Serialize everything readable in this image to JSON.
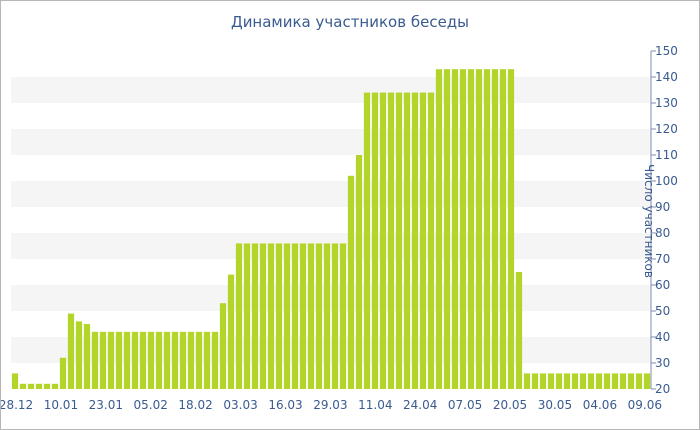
{
  "chart_data": {
    "type": "bar",
    "title": "Динамика участников беседы",
    "ylabel": "Число участников",
    "xlabel": "",
    "ylim": [
      20,
      150
    ],
    "y_ticks": [
      20,
      30,
      40,
      50,
      60,
      70,
      80,
      90,
      100,
      110,
      120,
      130,
      140,
      150
    ],
    "x_tick_labels": [
      "28.12",
      "10.01",
      "23.01",
      "05.02",
      "18.02",
      "03.03",
      "16.03",
      "29.03",
      "11.04",
      "24.04",
      "07.05",
      "20.05",
      "30.05",
      "04.06",
      "09.06"
    ],
    "values": [
      26,
      22,
      22,
      22,
      22,
      22,
      32,
      49,
      46,
      45,
      42,
      42,
      42,
      42,
      42,
      42,
      42,
      42,
      42,
      42,
      42,
      42,
      42,
      42,
      42,
      42,
      53,
      64,
      76,
      76,
      76,
      76,
      76,
      76,
      76,
      76,
      76,
      76,
      76,
      76,
      76,
      76,
      102,
      110,
      134,
      134,
      134,
      134,
      134,
      134,
      134,
      134,
      134,
      143,
      143,
      143,
      143,
      143,
      143,
      143,
      143,
      143,
      143,
      65,
      26,
      26,
      26,
      26,
      26,
      26,
      26,
      26,
      26,
      26,
      26,
      26,
      26,
      26,
      26,
      26
    ],
    "bar_color": "#b3d52a",
    "band_color": "#f5f5f5",
    "text_color": "#3a5b8f",
    "grid": "alternating horizontal bands",
    "legend": "none"
  }
}
